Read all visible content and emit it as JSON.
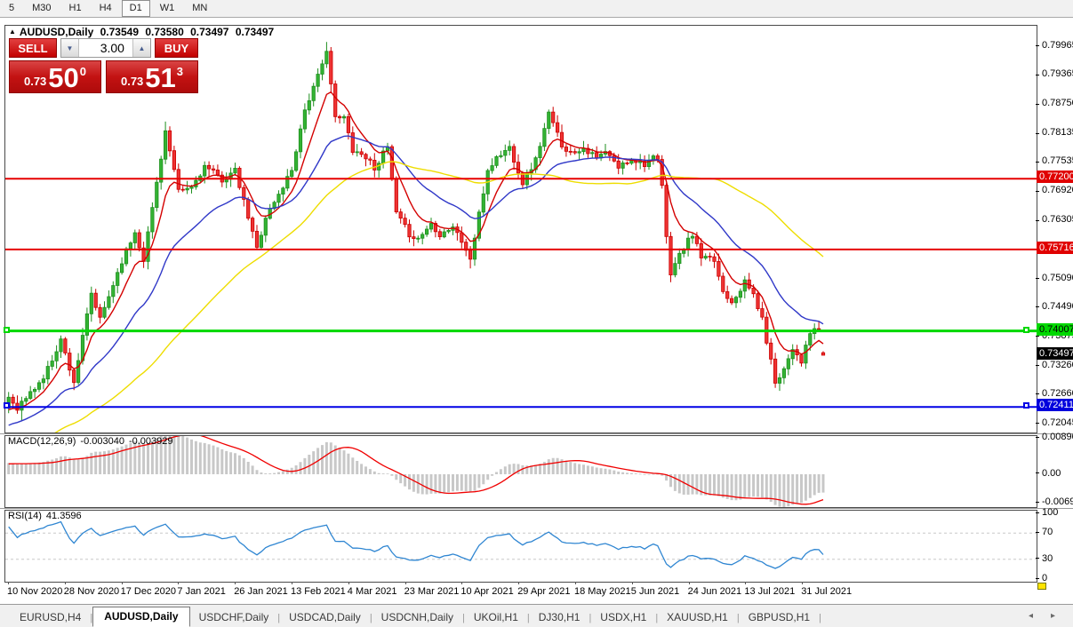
{
  "toolbar": {
    "timeframes": [
      "5",
      "M30",
      "H1",
      "H4",
      "D1",
      "W1",
      "MN"
    ],
    "active": "D1"
  },
  "chart_header": {
    "marker": "▲",
    "symbol": "AUDUSD,Daily",
    "open": "0.73549",
    "high": "0.73580",
    "low": "0.73497",
    "close": "0.73497"
  },
  "trade_panel": {
    "sell_label": "SELL",
    "buy_label": "BUY",
    "volume": "3.00",
    "down_arrow": "▼",
    "up_arrow": "▲",
    "sell_price": {
      "prefix": "0.73",
      "big": "50",
      "sup": "0"
    },
    "buy_price": {
      "prefix": "0.73",
      "big": "51",
      "sup": "3"
    }
  },
  "price_scale": {
    "ticks": [
      {
        "label": "0.79965",
        "price": 0.79965
      },
      {
        "label": "0.79365",
        "price": 0.79365
      },
      {
        "label": "0.78750",
        "price": 0.7875
      },
      {
        "label": "0.78135",
        "price": 0.78135
      },
      {
        "label": "0.77535",
        "price": 0.77535
      },
      {
        "label": "0.76920",
        "price": 0.7692
      },
      {
        "label": "0.76305",
        "price": 0.76305
      },
      {
        "label": "0.75090",
        "price": 0.7509
      },
      {
        "label": "0.74490",
        "price": 0.7449
      },
      {
        "label": "0.73875",
        "price": 0.73875
      },
      {
        "label": "0.73260",
        "price": 0.7326
      },
      {
        "label": "0.72660",
        "price": 0.7266
      },
      {
        "label": "0.72045",
        "price": 0.72045
      }
    ],
    "boxes": [
      {
        "text": "0.77200",
        "price": 0.772,
        "bg": "#e00000",
        "fg": "#ffffff",
        "name": "resistance-price-tag"
      },
      {
        "text": "0.75716",
        "price": 0.75716,
        "bg": "#e00000",
        "fg": "#ffffff",
        "name": "resistance-price-tag"
      },
      {
        "text": "0.74007",
        "price": 0.74007,
        "bg": "#00d800",
        "fg": "#000000",
        "name": "support-price-tag"
      },
      {
        "text": "0.73497",
        "price": 0.73497,
        "bg": "#000000",
        "fg": "#ffffff",
        "name": "current-price-tag"
      },
      {
        "text": "0.72411",
        "price": 0.72411,
        "bg": "#0000dd",
        "fg": "#ffffff",
        "name": "support-price-tag"
      }
    ]
  },
  "macd_panel": {
    "label": "MACD(12,26,9)",
    "value": "-0.003040",
    "signal_value": "-0.003929",
    "axis": [
      0.008903,
      0.0,
      -0.00697
    ],
    "axis_labels": [
      "0.008903",
      "0.00",
      "-0.00697"
    ]
  },
  "rsi_panel": {
    "label": "RSI(14)",
    "value": "41.3596",
    "axis": [
      100,
      70,
      30,
      0
    ],
    "axis_labels": [
      "100",
      "70",
      "30",
      "0"
    ]
  },
  "tabs": {
    "items": [
      {
        "label": "EURUSD,H4",
        "active": false
      },
      {
        "label": "AUDUSD,Daily",
        "active": true
      },
      {
        "label": "USDCHF,Daily",
        "active": false
      },
      {
        "label": "USDCAD,Daily",
        "active": false
      },
      {
        "label": "USDCNH,Daily",
        "active": false
      },
      {
        "label": "UKOil,H1",
        "active": false
      },
      {
        "label": "DJ30,H1",
        "active": false
      },
      {
        "label": "USDX,H1",
        "active": false
      },
      {
        "label": "XAUUSD,H1",
        "active": false
      },
      {
        "label": "GBPUSD,H1",
        "active": false
      }
    ],
    "scroll_left": "◂",
    "scroll_right": "▸"
  },
  "chart_data": {
    "type": "candlestick",
    "title": "AUDUSD,Daily",
    "bars": 188,
    "price_range": [
      0.71875,
      0.80412
    ],
    "x_labels": [
      "10 Nov 2020",
      "28 Nov 2020",
      "17 Dec 2020",
      "7 Jan 2021",
      "26 Jan 2021",
      "13 Feb 2021",
      "4 Mar 2021",
      "23 Mar 2021",
      "10 Apr 2021",
      "29 Apr 2021",
      "18 May 2021",
      "5 Jun 2021",
      "24 Jun 2021",
      "13 Jul 2021",
      "31 Jul 2021"
    ],
    "close_path": [
      [
        0,
        0.7262
      ],
      [
        2,
        0.724
      ],
      [
        5,
        0.727
      ],
      [
        8,
        0.7302
      ],
      [
        12,
        0.7382
      ],
      [
        15,
        0.7294
      ],
      [
        19,
        0.7478
      ],
      [
        21,
        0.7424
      ],
      [
        26,
        0.7548
      ],
      [
        29,
        0.7608
      ],
      [
        31,
        0.7552
      ],
      [
        36,
        0.782
      ],
      [
        39,
        0.7692
      ],
      [
        42,
        0.7702
      ],
      [
        45,
        0.7746
      ],
      [
        49,
        0.7718
      ],
      [
        52,
        0.7736
      ],
      [
        57,
        0.7574
      ],
      [
        59,
        0.764
      ],
      [
        62,
        0.7686
      ],
      [
        65,
        0.774
      ],
      [
        68,
        0.7866
      ],
      [
        70,
        0.791
      ],
      [
        72,
        0.7958
      ],
      [
        73,
        0.7994
      ],
      [
        75,
        0.7846
      ],
      [
        77,
        0.7848
      ],
      [
        79,
        0.7782
      ],
      [
        82,
        0.7766
      ],
      [
        84,
        0.7744
      ],
      [
        87,
        0.7786
      ],
      [
        89,
        0.7646
      ],
      [
        92,
        0.7604
      ],
      [
        94,
        0.7594
      ],
      [
        97,
        0.7626
      ],
      [
        99,
        0.7604
      ],
      [
        102,
        0.762
      ],
      [
        105,
        0.7572
      ],
      [
        106,
        0.755
      ],
      [
        110,
        0.7738
      ],
      [
        112,
        0.7764
      ],
      [
        115,
        0.7786
      ],
      [
        118,
        0.7712
      ],
      [
        121,
        0.776
      ],
      [
        124,
        0.7856
      ],
      [
        127,
        0.7792
      ],
      [
        129,
        0.7774
      ],
      [
        132,
        0.7786
      ],
      [
        135,
        0.7762
      ],
      [
        137,
        0.7776
      ],
      [
        140,
        0.7744
      ],
      [
        143,
        0.7762
      ],
      [
        146,
        0.7752
      ],
      [
        148,
        0.7762
      ],
      [
        149,
        0.7756
      ],
      [
        150,
        0.7706
      ],
      [
        151,
        0.7594
      ],
      [
        152,
        0.7524
      ],
      [
        154,
        0.756
      ],
      [
        157,
        0.7604
      ],
      [
        159,
        0.7554
      ],
      [
        162,
        0.7548
      ],
      [
        164,
        0.7484
      ],
      [
        166,
        0.7464
      ],
      [
        169,
        0.7502
      ],
      [
        171,
        0.7478
      ],
      [
        173,
        0.7424
      ],
      [
        176,
        0.7294
      ],
      [
        178,
        0.7322
      ],
      [
        180,
        0.7366
      ],
      [
        182,
        0.7338
      ],
      [
        184,
        0.7394
      ],
      [
        185,
        0.7406
      ],
      [
        186,
        0.7398
      ],
      [
        187,
        0.73497
      ]
    ],
    "spikes": [
      {
        "bar": 3,
        "low": 0.7211
      },
      {
        "bar": 36,
        "high": 0.784
      },
      {
        "bar": 73,
        "high": 0.8007
      },
      {
        "bar": 106,
        "low": 0.7532
      },
      {
        "bar": 152,
        "low": 0.7518
      },
      {
        "bar": 176,
        "low": 0.7289
      }
    ],
    "last_candle": {
      "open": 0.73549,
      "high": 0.7358,
      "low": 0.73497,
      "close": 0.73497
    },
    "hlines": [
      {
        "price": 0.772,
        "color": "#e60000",
        "width": 2,
        "anchors": false
      },
      {
        "price": 0.75716,
        "color": "#e60000",
        "width": 2,
        "anchors": false
      },
      {
        "price": 0.74007,
        "color": "#00d800",
        "width": 3,
        "anchors": true
      },
      {
        "price": 0.72411,
        "color": "#0000e6",
        "width": 2,
        "anchors": true
      }
    ],
    "moving_averages": [
      {
        "type": "ema",
        "period": 8,
        "color": "#d40000"
      },
      {
        "type": "ema",
        "period": 24,
        "color": "#3038c8"
      },
      {
        "type": "sma",
        "period": 55,
        "color": "#eedd00"
      }
    ],
    "prehistory": {
      "bars": 60,
      "from": 0.702,
      "to": 0.724
    },
    "candle_colors": {
      "up": "#33b333",
      "up_border": "#1f8f1f",
      "down": "#ee3333",
      "down_border": "#cc0000"
    },
    "macd": {
      "fast": 12,
      "slow": 26,
      "signal": 9,
      "range": [
        -0.00804,
        0.00934
      ],
      "hist_color": "#c8c8c8",
      "signal_color": "#f00000"
    },
    "rsi": {
      "period": 14,
      "levels": [
        70,
        30
      ],
      "color": "#2f86d2",
      "level_color": "#c8c8c8"
    },
    "seed": 11
  }
}
